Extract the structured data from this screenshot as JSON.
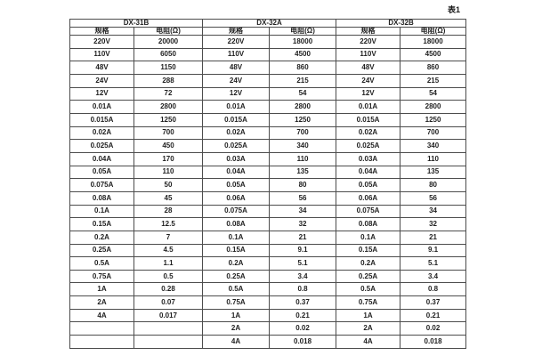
{
  "page": {
    "table_label": "表1"
  },
  "table": {
    "groups": [
      {
        "name": "DX-31B",
        "spec_header": "规格",
        "res_header": "电阻(Ω)"
      },
      {
        "name": "DX-32A",
        "spec_header": "规格",
        "res_header": "电阻(Ω)"
      },
      {
        "name": "DX-32B",
        "spec_header": "规格",
        "res_header": "电阻(Ω)"
      }
    ],
    "rows": [
      [
        "220V",
        "20000",
        "220V",
        "18000",
        "220V",
        "18000"
      ],
      [
        "110V",
        "6050",
        "110V",
        "4500",
        "110V",
        "4500"
      ],
      [
        "48V",
        "1150",
        "48V",
        "860",
        "48V",
        "860"
      ],
      [
        "24V",
        "288",
        "24V",
        "215",
        "24V",
        "215"
      ],
      [
        "12V",
        "72",
        "12V",
        "54",
        "12V",
        "54"
      ],
      [
        "0.01A",
        "2800",
        "0.01A",
        "2800",
        "0.01A",
        "2800"
      ],
      [
        "0.015A",
        "1250",
        "0.015A",
        "1250",
        "0.015A",
        "1250"
      ],
      [
        "0.02A",
        "700",
        "0.02A",
        "700",
        "0.02A",
        "700"
      ],
      [
        "0.025A",
        "450",
        "0.025A",
        "340",
        "0.025A",
        "340"
      ],
      [
        "0.04A",
        "170",
        "0.03A",
        "110",
        "0.03A",
        "110"
      ],
      [
        "0.05A",
        "110",
        "0.04A",
        "135",
        "0.04A",
        "135"
      ],
      [
        "0.075A",
        "50",
        "0.05A",
        "80",
        "0.05A",
        "80"
      ],
      [
        "0.08A",
        "45",
        "0.06A",
        "56",
        "0.06A",
        "56"
      ],
      [
        "0.1A",
        "28",
        "0.075A",
        "34",
        "0.075A",
        "34"
      ],
      [
        "0.15A",
        "12.5",
        "0.08A",
        "32",
        "0.08A",
        "32"
      ],
      [
        "0.2A",
        "7",
        "0.1A",
        "21",
        "0.1A",
        "21"
      ],
      [
        "0.25A",
        "4.5",
        "0.15A",
        "9.1",
        "0.15A",
        "9.1"
      ],
      [
        "0.5A",
        "1.1",
        "0.2A",
        "5.1",
        "0.2A",
        "5.1"
      ],
      [
        "0.75A",
        "0.5",
        "0.25A",
        "3.4",
        "0.25A",
        "3.4"
      ],
      [
        "1A",
        "0.28",
        "0.5A",
        "0.8",
        "0.5A",
        "0.8"
      ],
      [
        "2A",
        "0.07",
        "0.75A",
        "0.37",
        "0.75A",
        "0.37"
      ],
      [
        "4A",
        "0.017",
        "1A",
        "0.21",
        "1A",
        "0.21"
      ],
      [
        "",
        "",
        "2A",
        "0.02",
        "2A",
        "0.02"
      ],
      [
        "",
        "",
        "4A",
        "0.018",
        "4A",
        "0.018"
      ]
    ]
  }
}
